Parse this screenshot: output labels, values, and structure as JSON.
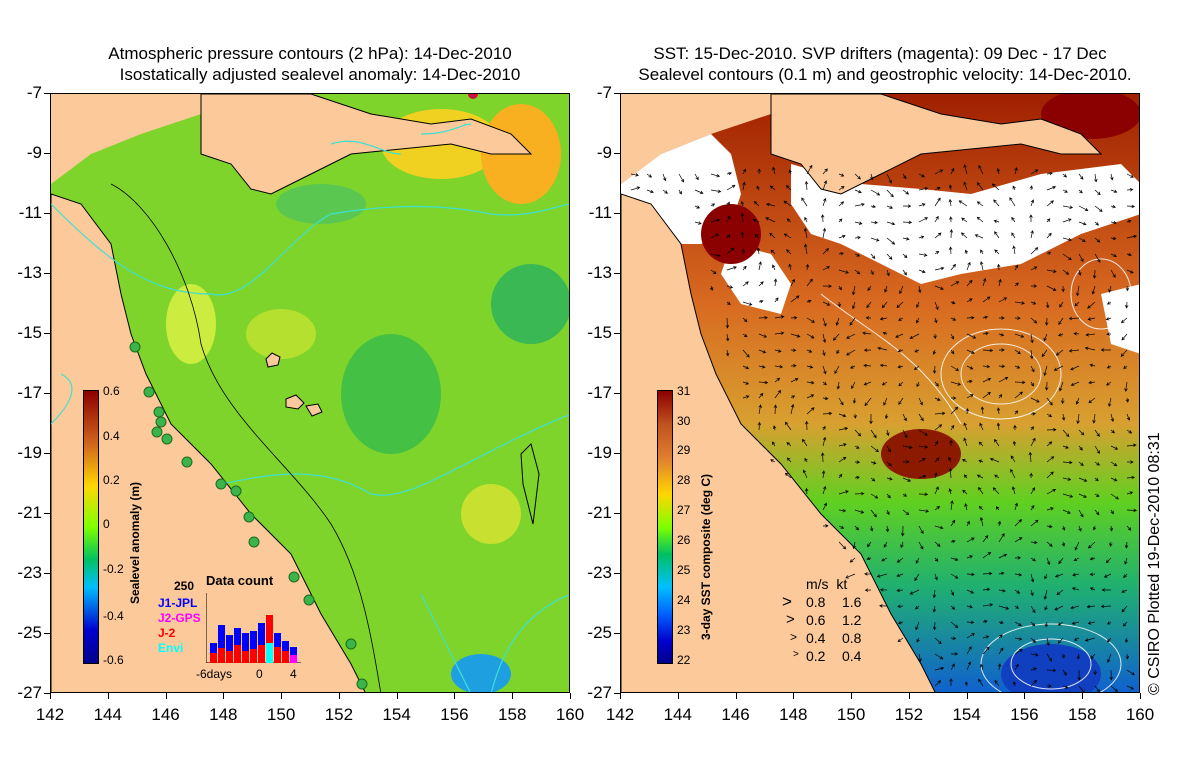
{
  "left_panel": {
    "title_line1": "Atmospheric pressure contours (2 hPa): 14-Dec-2010",
    "title_line2": "Isostatically adjusted sealevel anomaly: 14-Dec-2010",
    "colorbar": {
      "title": "Sealevel anomaly (m)",
      "ticks": [
        "0.6",
        "0.4",
        "0.2",
        "0",
        "-0.2",
        "-0.4",
        "-0.6"
      ],
      "colors": [
        "#8b0000",
        "#d2691e",
        "#ffd700",
        "#7fff00",
        "#00c060",
        "#00bfff",
        "#0000cd",
        "#00008b"
      ]
    },
    "data_count": {
      "title": "Data count",
      "max_label": "250",
      "x_left": "-6days",
      "x_mid": "0",
      "x_right": "4",
      "legend": [
        {
          "label": "J1-JPL",
          "color": "#0000ff"
        },
        {
          "label": "J2-GPS",
          "color": "#ff00ff"
        },
        {
          "label": "J-2",
          "color": "#ff0000"
        },
        {
          "label": "Envi",
          "color": "#00ffff"
        }
      ]
    }
  },
  "right_panel": {
    "title_line1": "SST: 15-Dec-2010. SVP drifters (magenta): 09 Dec - 17 Dec",
    "title_line2": "Sealevel contours (0.1 m) and geostrophic velocity: 14-Dec-2010.",
    "colorbar": {
      "title": "3-day SST composite (deg C)",
      "ticks": [
        "31",
        "30",
        "29",
        "28",
        "27",
        "26",
        "25",
        "24",
        "23",
        "22"
      ],
      "colors": [
        "#8b0000",
        "#c0501e",
        "#e08030",
        "#ffd700",
        "#7fff00",
        "#00c060",
        "#00bfff",
        "#0060ff",
        "#0000cd",
        "#00008b"
      ]
    },
    "speed_legend": {
      "header": "m/s  kt",
      "rows": [
        {
          "ms": "0.8",
          "kt": "1.6"
        },
        {
          "ms": "0.6",
          "kt": "1.2"
        },
        {
          "ms": "0.4",
          "kt": "0.8"
        },
        {
          "ms": "0.2",
          "kt": "0.4"
        }
      ]
    }
  },
  "axes": {
    "y_labels": [
      "-7",
      "-9",
      "-11",
      "-13",
      "-15",
      "-17",
      "-19",
      "-21",
      "-23",
      "-25",
      "-27"
    ],
    "x_labels": [
      "142",
      "144",
      "146",
      "148",
      "150",
      "152",
      "154",
      "156",
      "158",
      "160"
    ]
  },
  "credit": "© CSIRO Plotted 19-Dec-2010 08:31",
  "colors": {
    "land": "#fcc99a",
    "coast": "#000000",
    "contour_cyan": "#40e0d0"
  }
}
